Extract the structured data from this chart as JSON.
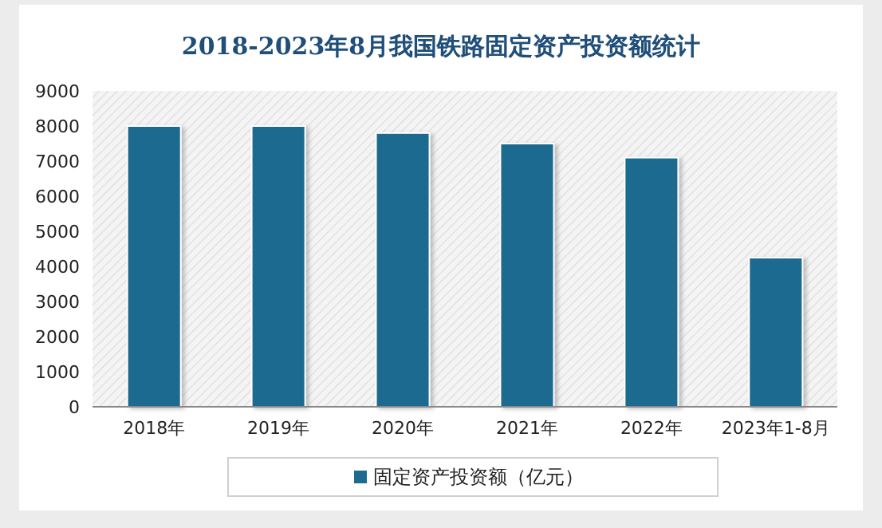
{
  "chart_data": {
    "type": "bar",
    "title": "2018-2023年8月我国铁路固定资产投资额统计",
    "categories": [
      "2018年",
      "2019年",
      "2020年",
      "2021年",
      "2022年",
      "2023年1-8月"
    ],
    "series": [
      {
        "name": "固定资产投资额（亿元）",
        "color": "#1e6b8f",
        "values": [
          8000,
          8000,
          7800,
          7500,
          7100,
          4250
        ]
      }
    ],
    "ylim": [
      0,
      9000
    ],
    "yticks": [
      0,
      1000,
      2000,
      3000,
      4000,
      5000,
      6000,
      7000,
      8000,
      9000
    ],
    "grid": false,
    "legend": "bottom"
  }
}
